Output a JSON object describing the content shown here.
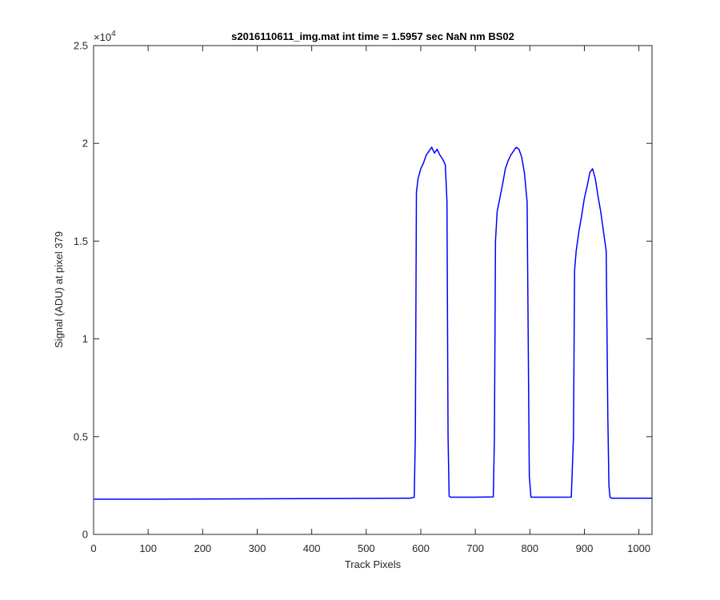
{
  "chart_data": {
    "type": "line",
    "title": "s2016110611_img.mat int time = 1.5957 sec  NaN nm BS02",
    "xlabel": "Track Pixels",
    "ylabel": "Signal (ADU) at pixel 379",
    "xlim": [
      0,
      1024
    ],
    "ylim": [
      0,
      25000
    ],
    "x_ticks": [
      0,
      100,
      200,
      300,
      400,
      500,
      600,
      700,
      800,
      900,
      1000
    ],
    "y_ticks": [
      0,
      5000,
      10000,
      15000,
      20000,
      25000
    ],
    "y_tick_labels": [
      "0",
      "0.5",
      "1",
      "1.5",
      "2",
      "2.5"
    ],
    "y_exponent_base": "×10",
    "y_exponent": "4",
    "grid": false,
    "series": [
      {
        "color": "#0000ff",
        "x": [
          0,
          100,
          200,
          300,
          400,
          500,
          580,
          588,
          590,
          592,
          595,
          600,
          605,
          610,
          615,
          620,
          625,
          630,
          635,
          640,
          645,
          648,
          650,
          652,
          655,
          700,
          733,
          735,
          737,
          740,
          745,
          750,
          755,
          760,
          765,
          770,
          775,
          780,
          785,
          790,
          795,
          797,
          799,
          802,
          850,
          876,
          880,
          882,
          885,
          890,
          895,
          900,
          905,
          910,
          915,
          920,
          925,
          930,
          935,
          940,
          943,
          945,
          947,
          950,
          1000,
          1024
        ],
        "y": [
          1800,
          1800,
          1810,
          1820,
          1830,
          1840,
          1850,
          1900,
          5000,
          17500,
          18200,
          18700,
          19000,
          19400,
          19600,
          19800,
          19500,
          19700,
          19400,
          19200,
          18900,
          17000,
          5000,
          1950,
          1900,
          1900,
          1920,
          5000,
          15000,
          16500,
          17200,
          17900,
          18700,
          19100,
          19400,
          19600,
          19800,
          19700,
          19300,
          18500,
          17000,
          10000,
          3000,
          1900,
          1900,
          1910,
          5000,
          13500,
          14500,
          15500,
          16300,
          17200,
          17800,
          18500,
          18700,
          18200,
          17300,
          16500,
          15500,
          14500,
          6000,
          2500,
          1900,
          1850,
          1850,
          1850
        ]
      }
    ]
  }
}
